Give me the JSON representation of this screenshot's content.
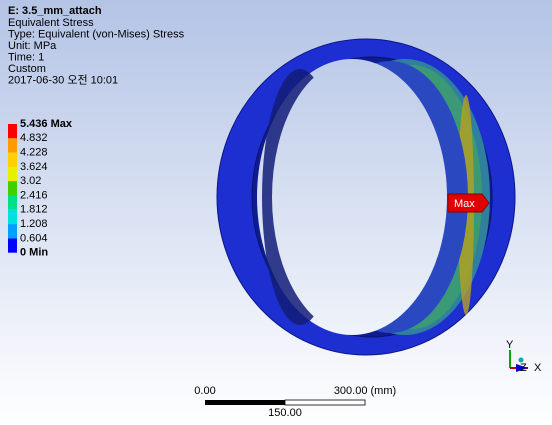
{
  "header": {
    "title": "E: 3.5_mm_attach",
    "lines": [
      "Equivalent Stress",
      "Type: Equivalent (von-Mises) Stress",
      "Unit: MPa",
      "Time: 1",
      "Custom",
      "2017-06-30 오전 10:01"
    ]
  },
  "legend": {
    "labels": [
      "5.436 Max",
      "4.832",
      "4.228",
      "3.624",
      "3.02",
      "2.416",
      "1.812",
      "1.208",
      "0.604",
      "0 Min"
    ],
    "colors": [
      "#ff0000",
      "#ff9a00",
      "#ffd000",
      "#e6f000",
      "#40d000",
      "#00e08a",
      "#00e0e0",
      "#00a0ff",
      "#0000ff"
    ]
  },
  "probe": {
    "label": "Max"
  },
  "scale_bar": {
    "left": "0.00",
    "right": "300.00 (mm)",
    "middle": "150.00"
  },
  "triad": {
    "y": "Y",
    "z": "Z",
    "x": "X"
  }
}
